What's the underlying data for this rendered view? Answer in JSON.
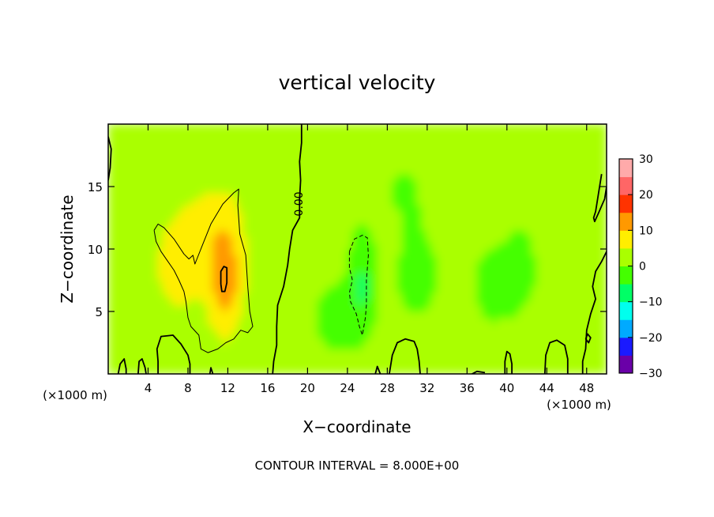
{
  "chart_data": {
    "type": "heatmap",
    "title": "vertical velocity",
    "xlabel": "X−coordinate",
    "ylabel": "Z−coordinate",
    "x_unit_left": "(×1000 m)",
    "x_unit_right": "(×1000 m)",
    "footer": "CONTOUR INTERVAL = 8.000E+00",
    "contour_label": "0.00",
    "xlim": [
      0,
      50
    ],
    "ylim": [
      0,
      20
    ],
    "x_ticks": [
      4,
      8,
      12,
      16,
      20,
      24,
      28,
      32,
      36,
      40,
      44,
      48
    ],
    "x_tick_labels": [
      "4",
      "8",
      "12",
      "16",
      "20",
      "24",
      "28",
      "32",
      "36",
      "40",
      "44",
      "48"
    ],
    "y_ticks": [
      5,
      10,
      15
    ],
    "y_tick_labels": [
      "5",
      "10",
      "15"
    ],
    "colorbar": {
      "min": -30,
      "max": 30,
      "ticks": [
        30,
        20,
        10,
        0,
        -10,
        -20,
        -30
      ],
      "tick_labels": [
        "30",
        "20",
        "10",
        "0",
        "−10",
        "−20",
        "−30"
      ],
      "colors": [
        "#6a00a8",
        "#1a1aff",
        "#00aaff",
        "#00ffee",
        "#00ff66",
        "#44ff00",
        "#aaff00",
        "#ffee00",
        "#ff9900",
        "#ff3300",
        "#ff6666",
        "#ffaaaa"
      ]
    },
    "field": {
      "background_value": 2,
      "features": [
        {
          "x": 11.8,
          "z": 7.5,
          "value": 11,
          "sx": 1.7,
          "sz": 4.2
        },
        {
          "x": 7.0,
          "z": 8.5,
          "value": 5,
          "sx": 2.5,
          "sz": 4.0
        },
        {
          "x": 10.5,
          "z": 12.0,
          "value": 4,
          "sx": 3.5,
          "sz": 4.0
        },
        {
          "x": 25.5,
          "z": 7.5,
          "value": -7,
          "sx": 1.3,
          "sz": 4.0
        },
        {
          "x": 23.0,
          "z": 4.5,
          "value": -4,
          "sx": 2.5,
          "sz": 3.0
        },
        {
          "x": 31.0,
          "z": 8.0,
          "value": -3,
          "sx": 3.0,
          "sz": 5.0
        },
        {
          "x": 38.5,
          "z": 7.0,
          "value": -3,
          "sx": 2.5,
          "sz": 4.0
        },
        {
          "x": 41.5,
          "z": 8.5,
          "value": -3,
          "sx": 2.0,
          "sz": 4.0
        },
        {
          "x": 29.5,
          "z": 15.0,
          "value": -2,
          "sx": 3.0,
          "sz": 3.0
        },
        {
          "x": 30.5,
          "z": 1.3,
          "value": 3,
          "sx": 1.5,
          "sz": 1.2
        },
        {
          "x": 44.5,
          "z": 1.3,
          "value": 3,
          "sx": 1.3,
          "sz": 1.2
        },
        {
          "x": 48.5,
          "z": 5.0,
          "value": 2,
          "sx": 1.5,
          "sz": 4.0
        }
      ]
    },
    "contours": [
      {
        "style": "thin",
        "points": [
          [
            4.6,
            11.5
          ],
          [
            5.0,
            12.0
          ],
          [
            5.6,
            11.7
          ],
          [
            6.6,
            10.8
          ],
          [
            7.6,
            9.6
          ],
          [
            8.1,
            9.2
          ],
          [
            8.5,
            9.5
          ],
          [
            8.7,
            8.8
          ],
          [
            9.4,
            10.2
          ],
          [
            10.3,
            12.0
          ],
          [
            11.5,
            13.6
          ],
          [
            12.6,
            14.5
          ],
          [
            13.1,
            14.8
          ],
          [
            13.0,
            13.5
          ],
          [
            13.2,
            11.2
          ],
          [
            13.8,
            9.5
          ],
          [
            14.0,
            7.0
          ],
          [
            14.2,
            5.0
          ],
          [
            14.5,
            3.8
          ],
          [
            14.0,
            3.3
          ],
          [
            13.3,
            3.5
          ],
          [
            12.6,
            2.8
          ],
          [
            11.8,
            2.5
          ],
          [
            11.0,
            2.0
          ],
          [
            10.0,
            1.7
          ],
          [
            9.3,
            2.0
          ],
          [
            9.1,
            3.1
          ],
          [
            8.3,
            3.8
          ],
          [
            8.0,
            4.5
          ],
          [
            7.8,
            5.8
          ],
          [
            7.6,
            6.6
          ],
          [
            7.1,
            7.5
          ],
          [
            6.6,
            8.3
          ],
          [
            5.9,
            9.1
          ],
          [
            5.3,
            9.8
          ],
          [
            4.8,
            10.6
          ],
          [
            4.6,
            11.5
          ]
        ]
      },
      {
        "style": "thick",
        "points": [
          [
            11.3,
            7.2
          ],
          [
            11.3,
            8.2
          ],
          [
            11.6,
            8.6
          ],
          [
            11.9,
            8.5
          ],
          [
            11.9,
            7.3
          ],
          [
            11.7,
            6.6
          ],
          [
            11.4,
            6.6
          ],
          [
            11.3,
            7.2
          ]
        ]
      },
      {
        "style": "thick",
        "points": [
          [
            19.4,
            20.0
          ],
          [
            19.4,
            18.5
          ],
          [
            19.2,
            17.0
          ],
          [
            19.3,
            15.5
          ],
          [
            19.2,
            14.0
          ],
          [
            19.2,
            12.5
          ],
          [
            18.5,
            11.5
          ],
          [
            18.2,
            10.0
          ],
          [
            18.0,
            8.7
          ],
          [
            17.6,
            7.0
          ],
          [
            17.0,
            5.5
          ],
          [
            16.9,
            3.8
          ],
          [
            16.9,
            2.3
          ],
          [
            16.6,
            1.0
          ],
          [
            16.5,
            0.0
          ]
        ]
      },
      {
        "style": "dashed",
        "points": [
          [
            24.2,
            9.8
          ],
          [
            24.7,
            10.8
          ],
          [
            25.5,
            11.1
          ],
          [
            26.0,
            10.9
          ],
          [
            26.1,
            9.5
          ],
          [
            25.9,
            7.5
          ],
          [
            25.9,
            5.5
          ],
          [
            25.8,
            4.5
          ],
          [
            25.5,
            3.1
          ],
          [
            25.2,
            3.8
          ],
          [
            24.9,
            4.8
          ],
          [
            24.3,
            5.8
          ],
          [
            24.2,
            6.5
          ],
          [
            24.5,
            7.5
          ],
          [
            24.2,
            8.5
          ],
          [
            24.2,
            9.8
          ]
        ]
      },
      {
        "style": "thick",
        "points": [
          [
            28.2,
            0.0
          ],
          [
            28.5,
            1.5
          ],
          [
            29.0,
            2.5
          ],
          [
            29.8,
            2.8
          ],
          [
            30.7,
            2.6
          ],
          [
            31.0,
            2.0
          ],
          [
            31.2,
            1.0
          ],
          [
            31.3,
            0.0
          ]
        ]
      },
      {
        "style": "thick",
        "points": [
          [
            39.8,
            0.0
          ],
          [
            39.8,
            1.0
          ],
          [
            40.0,
            1.8
          ],
          [
            40.3,
            1.6
          ],
          [
            40.5,
            0.8
          ],
          [
            40.5,
            0.0
          ]
        ]
      },
      {
        "style": "thick",
        "points": [
          [
            43.8,
            0.0
          ],
          [
            43.9,
            1.5
          ],
          [
            44.3,
            2.5
          ],
          [
            45.0,
            2.7
          ],
          [
            45.8,
            2.3
          ],
          [
            46.1,
            1.2
          ],
          [
            46.1,
            0.0
          ]
        ]
      },
      {
        "style": "thick",
        "points": [
          [
            50.0,
            9.8
          ],
          [
            49.5,
            9.0
          ],
          [
            48.9,
            8.2
          ],
          [
            48.6,
            7.0
          ],
          [
            48.9,
            6.0
          ],
          [
            48.4,
            4.8
          ],
          [
            48.0,
            3.5
          ],
          [
            47.9,
            2.0
          ],
          [
            47.6,
            1.0
          ],
          [
            47.6,
            0.0
          ]
        ]
      },
      {
        "style": "thick",
        "points": [
          [
            47.9,
            2.8
          ],
          [
            48.2,
            2.5
          ],
          [
            48.4,
            2.9
          ],
          [
            48.1,
            3.2
          ],
          [
            47.9,
            2.8
          ]
        ]
      },
      {
        "style": "thick",
        "points": [
          [
            49.5,
            16.0
          ],
          [
            49.2,
            14.5
          ],
          [
            48.9,
            13.0
          ],
          [
            48.7,
            12.5
          ],
          [
            48.8,
            12.2
          ],
          [
            49.2,
            12.9
          ],
          [
            49.8,
            14.0
          ],
          [
            50.0,
            15.0
          ]
        ]
      },
      {
        "style": "thick",
        "points": [
          [
            5.0,
            0.0
          ],
          [
            5.0,
            1.0
          ],
          [
            4.9,
            2.0
          ],
          [
            5.3,
            3.0
          ],
          [
            6.5,
            3.1
          ],
          [
            7.3,
            2.4
          ],
          [
            8.0,
            1.5
          ],
          [
            8.2,
            0.8
          ],
          [
            8.2,
            0.0
          ]
        ]
      },
      {
        "style": "thick",
        "points": [
          [
            1.0,
            0.0
          ],
          [
            1.2,
            0.8
          ],
          [
            1.6,
            1.2
          ],
          [
            1.8,
            0.4
          ],
          [
            1.8,
            0.0
          ]
        ]
      },
      {
        "style": "thick",
        "points": [
          [
            3.0,
            0.0
          ],
          [
            3.1,
            1.0
          ],
          [
            3.4,
            1.2
          ],
          [
            3.7,
            0.5
          ],
          [
            3.8,
            0.0
          ]
        ]
      },
      {
        "style": "thick",
        "points": [
          [
            0.0,
            19.0
          ],
          [
            0.3,
            18.0
          ],
          [
            0.2,
            16.5
          ],
          [
            0.0,
            15.5
          ]
        ]
      },
      {
        "style": "thick",
        "points": [
          [
            10.2,
            0.0
          ],
          [
            10.3,
            0.5
          ],
          [
            10.5,
            0.0
          ]
        ]
      },
      {
        "style": "thick",
        "points": [
          [
            26.8,
            0.0
          ],
          [
            27.0,
            0.6
          ],
          [
            27.3,
            0.0
          ]
        ]
      },
      {
        "style": "thick",
        "points": [
          [
            36.5,
            0.0
          ],
          [
            37.0,
            0.2
          ],
          [
            37.8,
            0.1
          ]
        ]
      }
    ]
  }
}
